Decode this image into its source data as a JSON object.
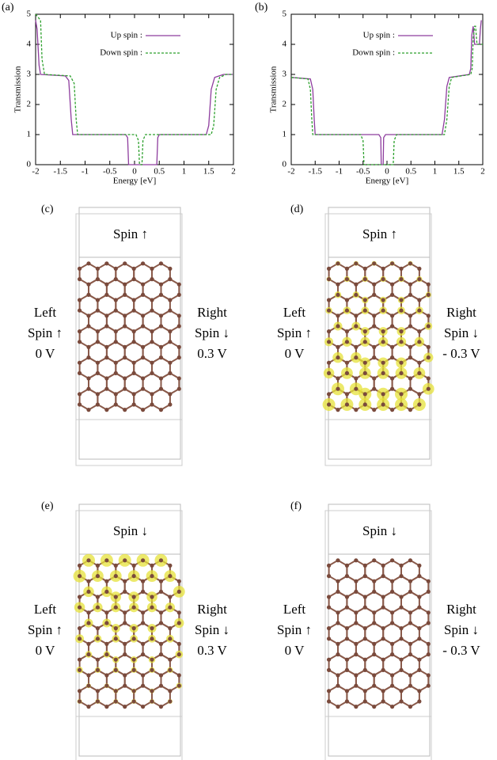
{
  "chart_data": [
    {
      "type": "line",
      "panel_label": "(a)",
      "xlabel": "Energy [eV]",
      "ylabel": "Transmission",
      "xlim": [
        -2,
        2
      ],
      "ylim": [
        0,
        5
      ],
      "xticks": [
        -2,
        -1.5,
        -1,
        -0.5,
        0,
        0.5,
        1,
        1.5,
        2
      ],
      "yticks": [
        0,
        1,
        2,
        3,
        4,
        5
      ],
      "legend": "upper center",
      "series": [
        {
          "name": "Up spin :",
          "color": "#8e3d9e",
          "style": "solid",
          "x": [
            -2,
            -1.97,
            -1.93,
            -1.9,
            -1.4,
            -1.33,
            -1.28,
            -1.25,
            -0.18,
            -0.14,
            -0.12,
            0.45,
            0.47,
            0.5,
            1.45,
            1.5,
            1.55,
            1.62,
            1.8,
            2
          ],
          "values": [
            4.8,
            4.5,
            3.3,
            3.0,
            2.95,
            2.8,
            1.5,
            1.0,
            1.0,
            0.9,
            0,
            0,
            0.9,
            1.0,
            1.0,
            1.3,
            2.5,
            2.9,
            3.0,
            3.0
          ]
        },
        {
          "name": "Down spin :",
          "color": "#2ca02c",
          "style": "dashed",
          "x": [
            -2,
            -1.9,
            -1.87,
            -1.82,
            -1.3,
            -1.22,
            -1.18,
            -1.15,
            0.03,
            0.08,
            0.1,
            0.15,
            0.17,
            0.22,
            1.55,
            1.6,
            1.65,
            1.72,
            1.85,
            2
          ],
          "values": [
            5,
            4.8,
            3.5,
            3.0,
            2.95,
            2.7,
            1.5,
            1.0,
            1.0,
            0.8,
            0,
            0,
            0.8,
            1.0,
            1.0,
            1.3,
            2.5,
            2.9,
            3.0,
            3.0
          ]
        }
      ]
    },
    {
      "type": "line",
      "panel_label": "(b)",
      "xlabel": "Energy [eV]",
      "ylabel": "Transmission",
      "xlim": [
        -2,
        2
      ],
      "ylim": [
        0,
        5
      ],
      "xticks": [
        -2,
        -1.5,
        -1,
        -0.5,
        0,
        0.5,
        1,
        1.5,
        2
      ],
      "yticks": [
        0,
        1,
        2,
        3,
        4,
        5
      ],
      "legend": "upper center",
      "series": [
        {
          "name": "Up spin :",
          "color": "#8e3d9e",
          "style": "solid",
          "x": [
            -2,
            -1.6,
            -1.55,
            -1.52,
            -1.5,
            -0.17,
            -0.13,
            -0.12,
            -0.08,
            -0.07,
            -0.03,
            1.15,
            1.2,
            1.25,
            1.3,
            1.72,
            1.75,
            1.77,
            1.8,
            1.83,
            1.87,
            1.93,
            1.95,
            1.97
          ],
          "values": [
            2.9,
            2.85,
            2.5,
            1.5,
            1.0,
            1.0,
            0.9,
            0,
            0,
            0.9,
            1.0,
            1.0,
            1.5,
            2.6,
            2.9,
            3.0,
            3.2,
            4.3,
            4.6,
            4.0,
            4.0,
            4.0,
            4.5,
            4.8
          ]
        },
        {
          "name": "Down spin :",
          "color": "#2ca02c",
          "style": "dashed",
          "x": [
            -2,
            -1.65,
            -1.6,
            -1.57,
            -1.55,
            -0.55,
            -0.5,
            -0.48,
            0.13,
            0.15,
            0.2,
            1.2,
            1.25,
            1.3,
            1.35,
            1.75,
            1.78,
            1.8,
            1.83,
            1.85,
            1.88,
            1.95,
            2
          ],
          "values": [
            2.9,
            2.85,
            2.5,
            1.5,
            1.0,
            1.0,
            0.8,
            0,
            0,
            0.8,
            1.0,
            1.0,
            1.5,
            2.6,
            2.9,
            3.0,
            3.2,
            4.2,
            4.6,
            4.6,
            4.0,
            4.0,
            4.0
          ]
        }
      ]
    }
  ],
  "panels": [
    {
      "label": "(c)",
      "spin": "Spin ↑",
      "left": [
        "Left",
        "Spin ↑",
        "0 V"
      ],
      "right": [
        "Right",
        "Spin ↓",
        "0.3 V"
      ]
    },
    {
      "label": "(d)",
      "spin": "Spin ↑",
      "left": [
        "Left",
        "Spin ↑",
        "0 V"
      ],
      "right": [
        "Right",
        "Spin ↓",
        "- 0.3 V"
      ]
    },
    {
      "label": "(e)",
      "spin": "Spin ↓",
      "left": [
        "Left",
        "Spin ↑",
        "0 V"
      ],
      "right": [
        "Right",
        "Spin ↓",
        "0.3 V"
      ]
    },
    {
      "label": "(f)",
      "spin": "Spin ↓",
      "left": [
        "Left",
        "Spin ↑",
        "0 V"
      ],
      "right": [
        "Right",
        "Spin ↓",
        "- 0.3 V"
      ]
    }
  ]
}
